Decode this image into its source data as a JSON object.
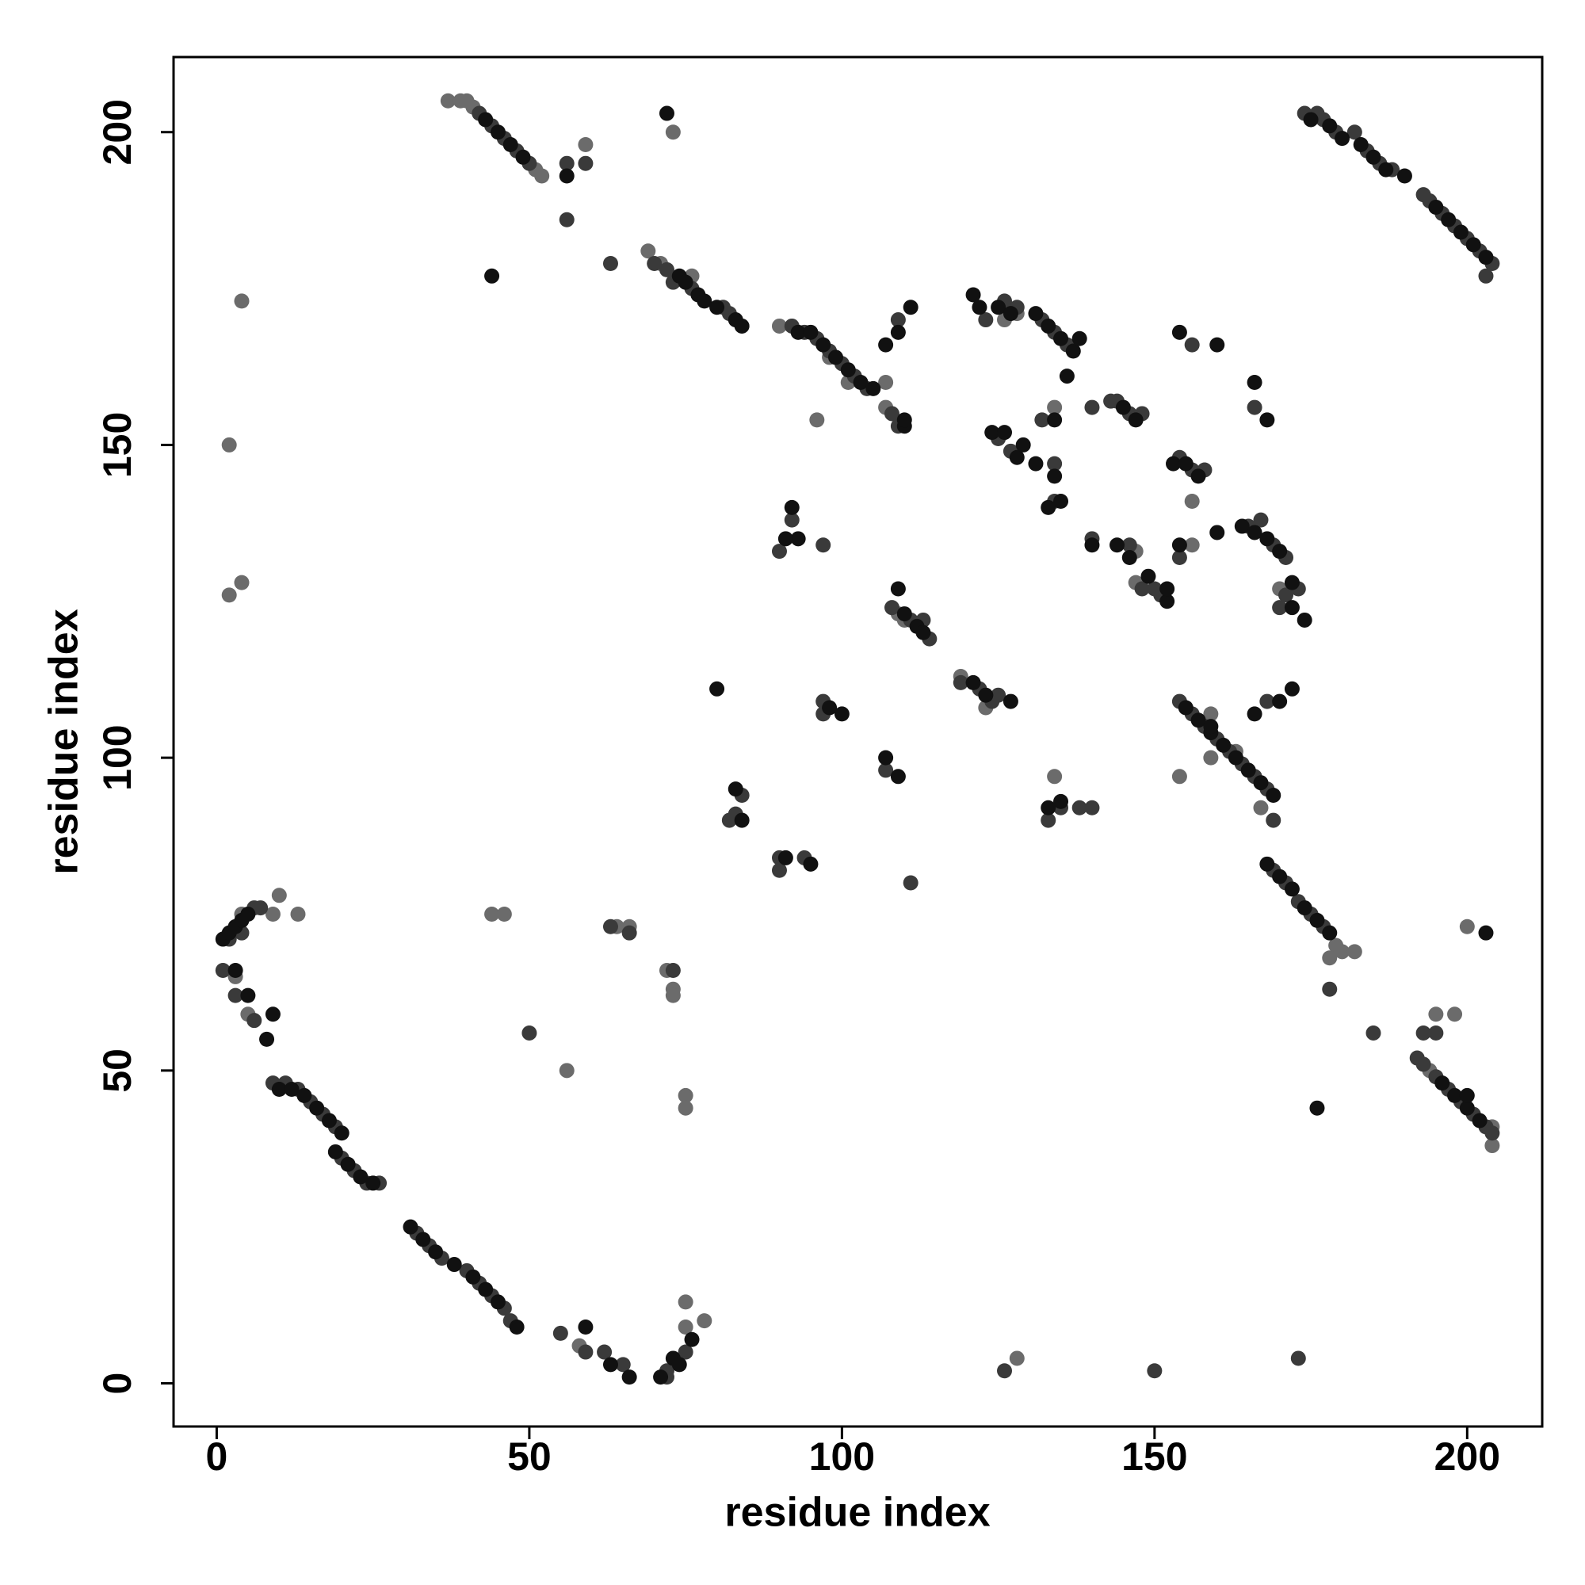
{
  "chart_data": {
    "type": "scatter",
    "x_label": "residue index",
    "y_label": "residue index",
    "xlim": [
      -6.9,
      212
    ],
    "ylim": [
      -6.9,
      212
    ],
    "xticks": [
      0,
      50,
      100,
      150,
      200
    ],
    "yticks": [
      0,
      50,
      100,
      150,
      200
    ],
    "series": [
      {
        "color": "#6b6b6b",
        "x": [
          4,
          10,
          9,
          13,
          5,
          3,
          37,
          39,
          40,
          41,
          51,
          52,
          59,
          73,
          4,
          2,
          2,
          4,
          69,
          71,
          76,
          90,
          96,
          107,
          107,
          126,
          128,
          134,
          156,
          156,
          147,
          147,
          175,
          179,
          180,
          182,
          178,
          75,
          78,
          75,
          58,
          128,
          154,
          159,
          159,
          167,
          134,
          109,
          110,
          119,
          123,
          200,
          195,
          198,
          194,
          204,
          204,
          56,
          64,
          66,
          72,
          73,
          73,
          75,
          75,
          44,
          46,
          170,
          163,
          98,
          101
        ],
        "values": [
          75,
          78,
          75,
          75,
          59,
          65,
          205,
          205,
          205,
          204,
          194,
          193,
          198,
          200,
          173,
          150,
          126,
          128,
          181,
          179,
          177,
          169,
          154,
          160,
          156,
          170,
          171,
          156,
          141,
          134,
          128,
          133,
          75,
          70,
          69,
          69,
          68,
          13,
          10,
          9,
          6,
          4,
          97,
          100,
          107,
          92,
          97,
          123,
          122,
          113,
          108,
          73,
          59,
          59,
          50,
          38,
          41,
          50,
          73,
          73,
          66,
          63,
          62,
          46,
          44,
          75,
          75,
          127,
          101,
          164,
          160
        ]
      },
      {
        "color": "#3a3a3a",
        "x": [
          2,
          4,
          6,
          1,
          3,
          6,
          9,
          11,
          13,
          15,
          17,
          19,
          20,
          22,
          24,
          26,
          7,
          32,
          34,
          36,
          40,
          42,
          44,
          46,
          47,
          55,
          62,
          65,
          72,
          75,
          59,
          72,
          42,
          44,
          46,
          48,
          50,
          56,
          59,
          56,
          63,
          70,
          72,
          73,
          76,
          81,
          82,
          92,
          94,
          96,
          98,
          100,
          102,
          104,
          108,
          109,
          109,
          123,
          126,
          128,
          132,
          134,
          136,
          132,
          140,
          144,
          146,
          148,
          143,
          125,
          127,
          134,
          140,
          146,
          148,
          150,
          151,
          134,
          154,
          156,
          158,
          154,
          156,
          166,
          165,
          167,
          169,
          171,
          171,
          173,
          170,
          92,
          90,
          97,
          108,
          111,
          114,
          113,
          119,
          122,
          124,
          125,
          97,
          97,
          107,
          111,
          84,
          83,
          90,
          90,
          94,
          82,
          133,
          135,
          138,
          140,
          154,
          156,
          158,
          160,
          162,
          164,
          166,
          168,
          168,
          169,
          169,
          171,
          173,
          175,
          177,
          178,
          185,
          126,
          173,
          150,
          174,
          176,
          177,
          179,
          182,
          184,
          186,
          188,
          193,
          194,
          196,
          198,
          200,
          202,
          204,
          203,
          192,
          193,
          195,
          197,
          199,
          201,
          203,
          204,
          193,
          195,
          63,
          66,
          73,
          50
        ],
        "values": [
          71,
          72,
          76,
          66,
          62,
          58,
          48,
          48,
          47,
          45,
          43,
          41,
          36,
          34,
          32,
          32,
          76,
          24,
          22,
          20,
          18,
          16,
          14,
          12,
          10,
          8,
          5,
          3,
          2,
          5,
          5,
          1,
          203,
          201,
          199,
          197,
          195,
          195,
          195,
          186,
          179,
          179,
          178,
          176,
          175,
          172,
          171,
          169,
          168,
          167,
          165,
          163,
          161,
          159,
          155,
          153,
          170,
          170,
          173,
          172,
          170,
          168,
          166,
          154,
          156,
          157,
          155,
          155,
          157,
          151,
          149,
          141,
          135,
          134,
          127,
          127,
          126,
          147,
          148,
          146,
          146,
          132,
          166,
          156,
          137,
          138,
          134,
          132,
          126,
          127,
          124,
          138,
          133,
          134,
          124,
          122,
          119,
          122,
          112,
          111,
          109,
          110,
          107,
          109,
          98,
          80,
          94,
          91,
          84,
          82,
          84,
          90,
          90,
          92,
          92,
          92,
          109,
          107,
          105,
          103,
          101,
          99,
          97,
          95,
          109,
          90,
          82,
          80,
          77,
          75,
          73,
          63,
          56,
          2,
          4,
          2,
          203,
          203,
          202,
          200,
          200,
          197,
          195,
          194,
          190,
          189,
          187,
          185,
          183,
          181,
          179,
          177,
          52,
          51,
          49,
          47,
          45,
          43,
          41,
          40,
          56,
          56,
          73,
          72,
          66,
          56
        ]
      },
      {
        "color": "#111111",
        "x": [
          1,
          2,
          3,
          4,
          5,
          3,
          5,
          9,
          8,
          10,
          12,
          14,
          16,
          18,
          20,
          19,
          21,
          23,
          25,
          31,
          33,
          35,
          38,
          41,
          43,
          45,
          48,
          59,
          63,
          66,
          71,
          73,
          74,
          76,
          43,
          45,
          47,
          49,
          56,
          72,
          44,
          74,
          75,
          77,
          78,
          80,
          83,
          84,
          93,
          95,
          97,
          99,
          101,
          103,
          105,
          110,
          110,
          109,
          107,
          111,
          121,
          122,
          125,
          127,
          131,
          133,
          135,
          137,
          138,
          136,
          134,
          145,
          147,
          124,
          126,
          128,
          129,
          131,
          134,
          135,
          133,
          140,
          144,
          146,
          149,
          152,
          152,
          153,
          155,
          157,
          154,
          154,
          160,
          166,
          168,
          160,
          164,
          166,
          168,
          170,
          172,
          172,
          174,
          93,
          92,
          91,
          109,
          110,
          112,
          113,
          121,
          123,
          127,
          80,
          98,
          100,
          107,
          109,
          83,
          84,
          91,
          95,
          133,
          135,
          155,
          157,
          159,
          161,
          163,
          165,
          167,
          169,
          159,
          166,
          170,
          172,
          168,
          170,
          172,
          174,
          176,
          178,
          176,
          203,
          175,
          178,
          180,
          183,
          185,
          187,
          190,
          195,
          197,
          199,
          201,
          203,
          196,
          198,
          200,
          202,
          200
        ],
        "values": [
          71,
          72,
          73,
          74,
          75,
          66,
          62,
          59,
          55,
          47,
          47,
          46,
          44,
          42,
          40,
          37,
          35,
          33,
          32,
          25,
          23,
          21,
          19,
          17,
          15,
          13,
          9,
          9,
          3,
          1,
          1,
          4,
          3,
          7,
          202,
          200,
          198,
          196,
          193,
          203,
          177,
          177,
          176,
          174,
          173,
          172,
          170,
          169,
          168,
          168,
          166,
          164,
          162,
          160,
          159,
          153,
          154,
          168,
          166,
          172,
          174,
          172,
          172,
          171,
          171,
          169,
          167,
          165,
          167,
          161,
          154,
          156,
          154,
          152,
          152,
          148,
          150,
          147,
          145,
          141,
          140,
          134,
          134,
          132,
          129,
          125,
          127,
          147,
          147,
          145,
          168,
          134,
          166,
          160,
          154,
          136,
          137,
          136,
          135,
          133,
          128,
          124,
          122,
          135,
          140,
          135,
          127,
          123,
          121,
          120,
          112,
          110,
          109,
          111,
          108,
          107,
          100,
          97,
          95,
          90,
          84,
          83,
          92,
          93,
          108,
          106,
          104,
          102,
          100,
          98,
          96,
          94,
          105,
          107,
          109,
          111,
          83,
          81,
          79,
          76,
          74,
          72,
          44,
          72,
          202,
          201,
          199,
          198,
          196,
          194,
          193,
          188,
          186,
          184,
          182,
          180,
          48,
          46,
          44,
          42,
          46
        ]
      }
    ]
  }
}
